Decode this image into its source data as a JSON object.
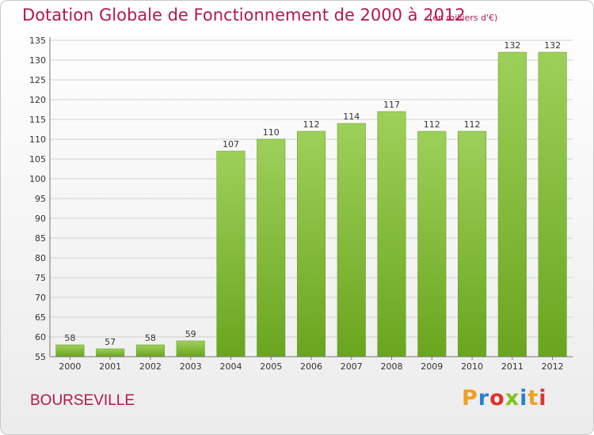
{
  "title": "Dotation Globale de Fonctionnement de 2000 à 2012",
  "unit_note": "(en milliers d'€)",
  "commune": "BOURSEVILLE",
  "logo": {
    "text": "Proxiti",
    "letter_colors": [
      "#f0a020",
      "#2a7fd0",
      "#e03030",
      "#80c020",
      "#2a7fd0",
      "#f0a020",
      "#e03030"
    ]
  },
  "colors": {
    "title": "#b5174d",
    "bar_light": "#9dd05a",
    "bar_dark": "#6aa51e",
    "grid": "#d0d0d0",
    "axis_text": "#333333"
  },
  "chart_data": {
    "type": "bar",
    "title": "Dotation Globale de Fonctionnement de 2000 à 2012",
    "subtitle": "(en milliers d'€)",
    "categories": [
      "2000",
      "2001",
      "2002",
      "2003",
      "2004",
      "2005",
      "2006",
      "2007",
      "2008",
      "2009",
      "2010",
      "2011",
      "2012"
    ],
    "values": [
      58,
      57,
      58,
      59,
      107,
      110,
      112,
      114,
      117,
      112,
      112,
      132,
      132
    ],
    "ylim": [
      55,
      135
    ],
    "yticks": [
      55,
      60,
      65,
      70,
      75,
      80,
      85,
      90,
      95,
      100,
      105,
      110,
      115,
      120,
      125,
      130,
      135
    ],
    "grid": true,
    "data_labels": true,
    "xlabel": "",
    "ylabel": ""
  }
}
